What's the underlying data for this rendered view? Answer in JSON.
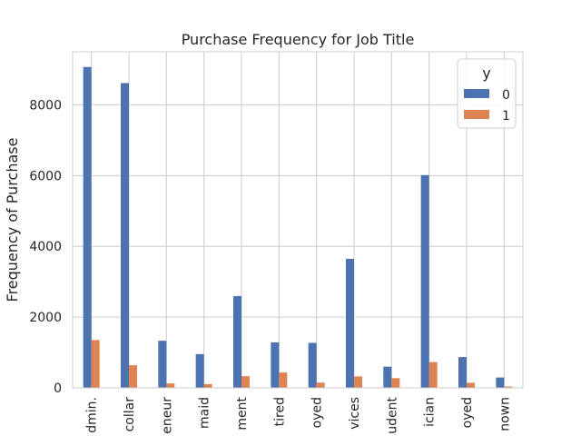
{
  "chart_data": {
    "type": "bar",
    "title": "Purchase Frequency for Job Title",
    "xlabel": "",
    "ylabel": "Frequency of Purchase",
    "categories": [
      "admin.",
      "blue-collar",
      "entrepreneur",
      "housemaid",
      "management",
      "retired",
      "self-employed",
      "services",
      "student",
      "technician",
      "unemployed",
      "unknown"
    ],
    "tick_labels": [
      "dmin.",
      "collar",
      "eneur",
      "maid",
      "ment",
      "tired",
      "oyed",
      "vices",
      "udent",
      "ician",
      "oyed",
      "nown"
    ],
    "series": [
      {
        "name": "0",
        "color": "#4c72b0",
        "values": [
          9070,
          8616,
          1332,
          954,
          2596,
          1286,
          1272,
          3646,
          600,
          6013,
          870,
          293
        ]
      },
      {
        "name": "1",
        "color": "#dd8452",
        "values": [
          1352,
          638,
          124,
          106,
          328,
          434,
          149,
          323,
          275,
          730,
          144,
          37
        ]
      }
    ],
    "yticks": [
      0,
      2000,
      4000,
      6000,
      8000
    ],
    "ylim": [
      0,
      9500
    ],
    "grid": true,
    "legend": {
      "title": "y",
      "placement": "top-right"
    }
  }
}
